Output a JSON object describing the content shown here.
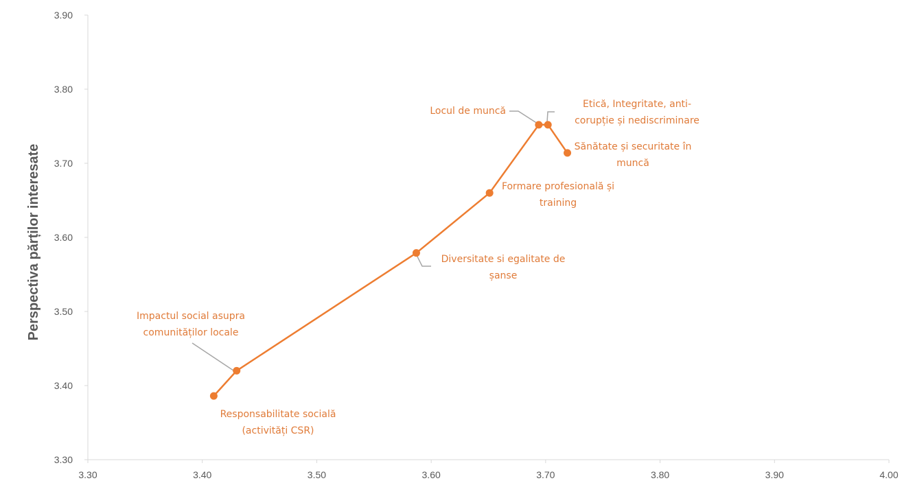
{
  "chart_data": {
    "type": "line",
    "title": "",
    "xlabel": "",
    "ylabel": "Perspectiva părților interesate",
    "xlim": [
      3.3,
      4.0
    ],
    "ylim": [
      3.3,
      3.9
    ],
    "xticks": [
      "3.30",
      "3.40",
      "3.50",
      "3.60",
      "3.70",
      "3.80",
      "3.90",
      "4.00"
    ],
    "yticks": [
      "3.30",
      "3.40",
      "3.50",
      "3.60",
      "3.70",
      "3.80",
      "3.90"
    ],
    "grid": false,
    "legend": "none",
    "color": "#ED7D31",
    "leader_line_color": "#a6a6a6",
    "axis_color": "#d9d9d9",
    "points": [
      {
        "x": 3.41,
        "y": 3.386,
        "label": [
          "Responsabilitate socială",
          "(activități CSR)"
        ]
      },
      {
        "x": 3.43,
        "y": 3.42,
        "label": [
          "Impactul social asupra",
          "comunităților locale"
        ]
      },
      {
        "x": 3.587,
        "y": 3.579,
        "label": [
          "Diversitate si egalitate de",
          "șanse"
        ]
      },
      {
        "x": 3.651,
        "y": 3.66,
        "label": [
          "Formare profesională și",
          "training"
        ]
      },
      {
        "x": 3.694,
        "y": 3.752,
        "label": [
          "Locul de muncă"
        ]
      },
      {
        "x": 3.702,
        "y": 3.752,
        "label": [
          "Etică, Integritate, anti-",
          "corupție și nediscriminare"
        ]
      },
      {
        "x": 3.719,
        "y": 3.714,
        "label": [
          "Sănătate și securitate în",
          "muncă"
        ]
      }
    ]
  }
}
